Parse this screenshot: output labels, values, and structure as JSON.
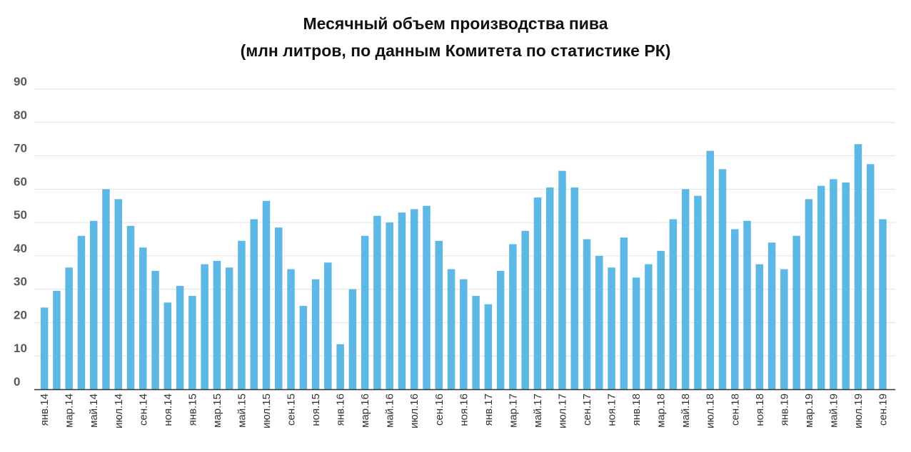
{
  "chart_data": {
    "type": "bar",
    "title": "Месячный объем производства пива",
    "subtitle": "(млн литров, по данным Комитета по статистике РК)",
    "xlabel": "",
    "ylabel": "",
    "ylim": [
      0,
      90
    ],
    "yticks": [
      "0",
      "10",
      "20",
      "30",
      "40",
      "50",
      "60",
      "70",
      "80",
      "90"
    ],
    "grid": true,
    "bar_color": "#5DB8E6",
    "categories": [
      "янв.14",
      "фев.14",
      "мар.14",
      "апр.14",
      "май.14",
      "июн.14",
      "июл.14",
      "авг.14",
      "сен.14",
      "окт.14",
      "ноя.14",
      "дек.14",
      "янв.15",
      "фев.15",
      "мар.15",
      "апр.15",
      "май.15",
      "июн.15",
      "июл.15",
      "авг.15",
      "сен.15",
      "окт.15",
      "ноя.15",
      "дек.15",
      "янв.16",
      "фев.16",
      "мар.16",
      "апр.16",
      "май.16",
      "июн.16",
      "июл.16",
      "авг.16",
      "сен.16",
      "окт.16",
      "ноя.16",
      "дек.16",
      "янв.17",
      "фев.17",
      "мар.17",
      "апр.17",
      "май.17",
      "июн.17",
      "июл.17",
      "авг.17",
      "сен.17",
      "окт.17",
      "ноя.17",
      "дек.17",
      "янв.18",
      "фев.18",
      "мар.18",
      "апр.18",
      "май.18",
      "июн.18",
      "июл.18",
      "авг.18",
      "сен.18",
      "окт.18",
      "ноя.18",
      "дек.18",
      "янв.19",
      "фев.19",
      "мар.19",
      "апр.19",
      "май.19",
      "июн.19",
      "июл.19",
      "авг.19",
      "сен.19"
    ],
    "tick_labels": [
      "янв.14",
      "мар.14",
      "май.14",
      "июл.14",
      "сен.14",
      "ноя.14",
      "янв.15",
      "мар.15",
      "май.15",
      "июл.15",
      "сен.15",
      "ноя.15",
      "янв.16",
      "мар.16",
      "май.16",
      "июл.16",
      "сен.16",
      "ноя.16",
      "янв.17",
      "мар.17",
      "май.17",
      "июл.17",
      "сен.17",
      "ноя.17",
      "янв.18",
      "мар.18",
      "май.18",
      "июл.18",
      "сен.18",
      "ноя.18",
      "янв.19",
      "мар.19",
      "май.19",
      "июл.19",
      "сен.19"
    ],
    "values": [
      24.5,
      29.5,
      36.5,
      46,
      50.5,
      60,
      57,
      49,
      42.5,
      35.5,
      26,
      31,
      28,
      37.5,
      38.5,
      36.5,
      44.5,
      51,
      56.5,
      48.5,
      36,
      25,
      33,
      38,
      13.5,
      30,
      46,
      52,
      50,
      53,
      54,
      55,
      44.5,
      36,
      33,
      28,
      25.5,
      35.5,
      43.5,
      47.5,
      57.5,
      60.5,
      65.5,
      60.5,
      45,
      40,
      36.5,
      45.5,
      33.5,
      37.5,
      41.5,
      51,
      60,
      58,
      71.5,
      66,
      48,
      50.5,
      37.5,
      44,
      36,
      46,
      57,
      61,
      63,
      62,
      73.5,
      67.5,
      51
    ]
  }
}
